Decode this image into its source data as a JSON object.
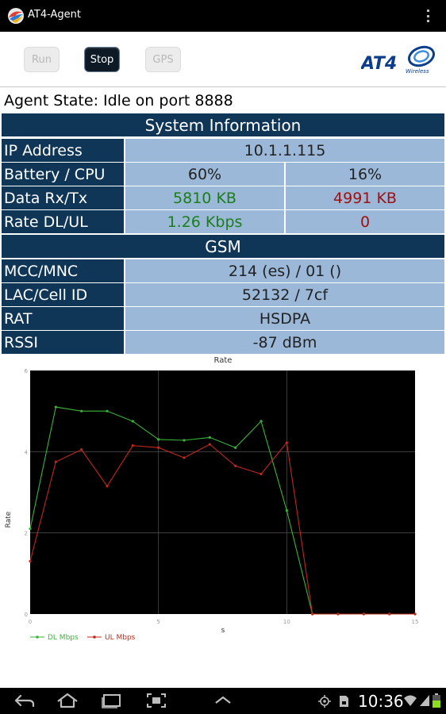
{
  "app": {
    "title": "AT4-Agent",
    "icon": "at4-app-icon"
  },
  "toolbar": {
    "run_label": "Run",
    "stop_label": "Stop",
    "gps_label": "GPS",
    "logo_text": "AT4",
    "logo_subtext": "Wireless"
  },
  "agent_state": "Agent State: Idle on port 8888",
  "system_info": {
    "header": "System Information",
    "ip_label": "IP Address",
    "ip_value": "10.1.1.115",
    "battery_cpu_label": "Battery / CPU",
    "battery_value": "60%",
    "cpu_value": "16%",
    "data_label": "Data Rx/Tx",
    "rx_value": "5810 KB",
    "tx_value": "4991 KB",
    "rate_label": "Rate DL/UL",
    "dl_value": "1.26 Kbps",
    "ul_value": "0"
  },
  "gsm": {
    "header": "GSM",
    "mcc_label": "MCC/MNC",
    "mcc_value": "214 (es) / 01 ()",
    "lac_label": "LAC/Cell ID",
    "lac_value": "52132 / 7cf",
    "rat_label": "RAT",
    "rat_value": "HSDPA",
    "rssi_label": "RSSI",
    "rssi_value": "-87 dBm"
  },
  "colors": {
    "header_bg": "#0f3557",
    "cell_bg": "#9bb8d8",
    "rx_green": "#1a7f1a",
    "tx_red": "#a01010",
    "dl_series": "#3ab43a",
    "ul_series": "#c0281c",
    "plot_bg": "#000000"
  },
  "chart_data": {
    "type": "line",
    "title": "Rate",
    "xlabel": "s",
    "ylabel": "Rate",
    "xlim": [
      0,
      15
    ],
    "ylim": [
      0,
      6
    ],
    "xticks": [
      0,
      5,
      10,
      15
    ],
    "yticks": [
      0,
      2,
      4,
      6
    ],
    "grid": true,
    "legend": "bottom-left",
    "series": [
      {
        "name": "DL Mbps",
        "color": "#3ab43a",
        "x": [
          0,
          1,
          2,
          3,
          4,
          5,
          6,
          7,
          8,
          9,
          10,
          11,
          12,
          13,
          14,
          15
        ],
        "y": [
          2.1,
          5.1,
          5.0,
          5.0,
          4.75,
          4.3,
          4.28,
          4.35,
          4.1,
          4.75,
          2.55,
          0,
          0,
          0,
          0,
          0
        ]
      },
      {
        "name": "UL Mbps",
        "color": "#c0281c",
        "x": [
          0,
          1,
          2,
          3,
          4,
          5,
          6,
          7,
          8,
          9,
          10,
          11,
          12,
          13,
          14,
          15
        ],
        "y": [
          1.3,
          3.75,
          4.05,
          3.15,
          4.15,
          4.1,
          3.85,
          4.18,
          3.65,
          3.45,
          4.22,
          0,
          0,
          0,
          0,
          0
        ]
      }
    ]
  },
  "statusbar": {
    "time": "10:36"
  }
}
